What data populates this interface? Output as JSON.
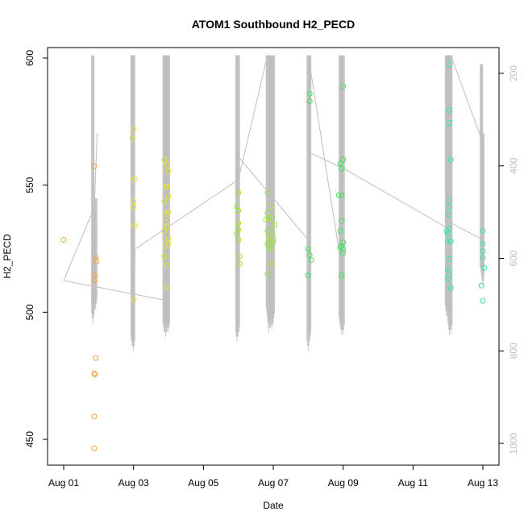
{
  "chart_data": {
    "type": "scatter",
    "title": "ATOM1 Southbound H2_PECD",
    "xlabel": "Date",
    "ylabel": "H2_PECD",
    "x_axis": {
      "type": "date",
      "range": [
        "2016-08-01",
        "2016-08-13"
      ],
      "ticks": [
        {
          "value": "2016-08-01",
          "label": "Aug 01"
        },
        {
          "value": "2016-08-03",
          "label": "Aug 03"
        },
        {
          "value": "2016-08-05",
          "label": "Aug 05"
        },
        {
          "value": "2016-08-07",
          "label": "Aug 07"
        },
        {
          "value": "2016-08-09",
          "label": "Aug 09"
        },
        {
          "value": "2016-08-11",
          "label": "Aug 11"
        },
        {
          "value": "2016-08-13",
          "label": "Aug 13"
        }
      ]
    },
    "y_axis": {
      "range": [
        446,
        601
      ],
      "ticks": [
        {
          "value": 450,
          "label": "450"
        },
        {
          "value": 500,
          "label": "500"
        },
        {
          "value": 550,
          "label": "550"
        },
        {
          "value": 600,
          "label": "600"
        }
      ]
    },
    "y2_axis": {
      "reversed": true,
      "range": [
        1047,
        161
      ],
      "color": "#bebebe",
      "ticks": [
        {
          "value": 200,
          "label": "200"
        },
        {
          "value": 400,
          "label": "400"
        },
        {
          "value": 600,
          "label": "600"
        },
        {
          "value": 800,
          "label": "800"
        },
        {
          "value": 1000,
          "label": "1000"
        }
      ]
    },
    "grid": false,
    "point_series": [
      {
        "color": "#f4a340",
        "points": [
          [
            "2016-08-01T00:00",
            528.5
          ],
          [
            "2016-08-01T21:00",
            557.5
          ],
          [
            "2016-08-01T22:00",
            521.5
          ],
          [
            "2016-08-01T22:30",
            520
          ],
          [
            "2016-08-01T21:30",
            514.5
          ],
          [
            "2016-08-01T21:00",
            512.5
          ],
          [
            "2016-08-01T22:00",
            482
          ],
          [
            "2016-08-01T21:00",
            476
          ],
          [
            "2016-08-01T21:30",
            475.5
          ],
          [
            "2016-08-01T21:00",
            459
          ],
          [
            "2016-08-01T21:00",
            446.5
          ]
        ]
      },
      {
        "color": "#e6e62a",
        "points": [
          [
            "2016-08-03T00:00",
            572
          ],
          [
            "2016-08-02T23:00",
            568.5
          ],
          [
            "2016-08-03T01:00",
            552.5
          ],
          [
            "2016-08-03T00:00",
            543.5
          ],
          [
            "2016-08-03T00:00",
            541.5
          ],
          [
            "2016-08-03T01:00",
            534
          ],
          [
            "2016-08-03T00:00",
            505
          ],
          [
            "2016-08-03T21:00",
            560
          ],
          [
            "2016-08-03T23:00",
            558
          ],
          [
            "2016-08-04T00:00",
            555.5
          ],
          [
            "2016-08-03T22:00",
            549.5
          ],
          [
            "2016-08-03T23:00",
            549.5
          ],
          [
            "2016-08-04T00:00",
            545.5
          ],
          [
            "2016-08-03T21:00",
            543.5
          ],
          [
            "2016-08-04T00:00",
            539.5
          ],
          [
            "2016-08-03T23:00",
            538.5
          ],
          [
            "2016-08-03T22:00",
            535.5
          ],
          [
            "2016-08-03T23:00",
            533.5
          ],
          [
            "2016-08-03T21:00",
            532
          ],
          [
            "2016-08-04T00:00",
            529
          ],
          [
            "2016-08-03T22:00",
            526
          ],
          [
            "2016-08-04T00:00",
            527
          ],
          [
            "2016-08-03T21:00",
            522
          ],
          [
            "2016-08-03T23:00",
            518.5
          ],
          [
            "2016-08-03T23:00",
            510
          ]
        ]
      },
      {
        "color": "#9be62a",
        "points": [
          [
            "2016-08-06T00:00",
            547
          ],
          [
            "2016-08-05T23:00",
            541.5
          ],
          [
            "2016-08-06T00:00",
            540
          ],
          [
            "2016-08-06T00:00",
            535
          ],
          [
            "2016-08-06T00:00",
            532.5
          ],
          [
            "2016-08-05T23:00",
            531
          ],
          [
            "2016-08-06T00:00",
            528.5
          ],
          [
            "2016-08-06T01:00",
            522
          ],
          [
            "2016-08-06T01:00",
            519
          ],
          [
            "2016-08-06T20:00",
            547
          ],
          [
            "2016-08-06T22:00",
            541.5
          ],
          [
            "2016-08-06T20:00",
            539
          ],
          [
            "2016-08-06T21:00",
            537
          ],
          [
            "2016-08-06T23:00",
            537
          ],
          [
            "2016-08-06T19:00",
            536.5
          ],
          [
            "2016-08-07T01:00",
            534.5
          ],
          [
            "2016-08-06T20:00",
            532
          ],
          [
            "2016-08-06T23:00",
            531.5
          ],
          [
            "2016-08-06T21:00",
            530
          ],
          [
            "2016-08-07T00:00",
            529
          ],
          [
            "2016-08-06T22:00",
            528
          ],
          [
            "2016-08-06T20:00",
            527
          ],
          [
            "2016-08-07T00:00",
            527.5
          ],
          [
            "2016-08-06T21:00",
            525.5
          ],
          [
            "2016-08-06T23:00",
            525
          ],
          [
            "2016-08-06T22:00",
            519
          ],
          [
            "2016-08-06T20:00",
            515
          ]
        ]
      },
      {
        "color": "#3ee65c",
        "points": [
          [
            "2016-08-08T01:00",
            586
          ],
          [
            "2016-08-08T01:00",
            583
          ],
          [
            "2016-08-08T00:00",
            525
          ],
          [
            "2016-08-08T01:00",
            522.5
          ],
          [
            "2016-08-08T02:00",
            520.5
          ],
          [
            "2016-08-08T00:00",
            514.5
          ],
          [
            "2016-08-08T22:00",
            558.5
          ],
          [
            "2016-08-08T23:00",
            556.5
          ],
          [
            "2016-08-09T00:00",
            560
          ],
          [
            "2016-08-09T00:00",
            589
          ],
          [
            "2016-08-08T21:00",
            546
          ],
          [
            "2016-08-08T23:00",
            546
          ],
          [
            "2016-08-08T23:00",
            536
          ],
          [
            "2016-08-08T22:00",
            532
          ],
          [
            "2016-08-09T00:00",
            527.5
          ],
          [
            "2016-08-08T23:00",
            526
          ],
          [
            "2016-08-08T22:00",
            525.5
          ],
          [
            "2016-08-09T00:00",
            525
          ],
          [
            "2016-08-09T00:00",
            523.5
          ],
          [
            "2016-08-08T23:00",
            514.5
          ]
        ]
      },
      {
        "color": "#36e6b4",
        "points": [
          [
            "2016-08-12T01:00",
            597.5
          ],
          [
            "2016-08-12T01:00",
            579.5
          ],
          [
            "2016-08-12T01:00",
            574.5
          ],
          [
            "2016-08-12T02:00",
            560
          ],
          [
            "2016-08-12T01:00",
            544
          ],
          [
            "2016-08-12T01:00",
            541.5
          ],
          [
            "2016-08-12T00:00",
            538.5
          ],
          [
            "2016-08-12T01:00",
            533
          ],
          [
            "2016-08-11T23:00",
            532
          ],
          [
            "2016-08-12T00:00",
            531
          ],
          [
            "2016-08-12T00:00",
            528
          ],
          [
            "2016-08-12T02:00",
            528
          ],
          [
            "2016-08-12T01:00",
            521
          ],
          [
            "2016-08-12T00:00",
            517
          ],
          [
            "2016-08-12T01:00",
            514.5
          ],
          [
            "2016-08-12T00:00",
            513
          ],
          [
            "2016-08-12T02:00",
            509.5
          ],
          [
            "2016-08-13T00:00",
            532
          ],
          [
            "2016-08-13T00:00",
            527
          ],
          [
            "2016-08-13T00:00",
            524
          ],
          [
            "2016-08-13T00:00",
            521.5
          ],
          [
            "2016-08-13T01:00",
            517.5
          ],
          [
            "2016-08-12T23:00",
            510.5
          ],
          [
            "2016-08-13T00:00",
            504.5
          ]
        ]
      }
    ],
    "line_series": [
      {
        "color": "#bebebe",
        "axis": "y2",
        "points": [
          [
            "2016-08-01T00:00",
            648
          ],
          [
            "2016-08-01T21:00",
            490
          ],
          [
            "2016-08-01T23:00",
            330
          ]
        ]
      },
      {
        "color": "#bebebe",
        "axis": "y2",
        "points": [
          [
            "2016-08-01T00:00",
            648
          ],
          [
            "2016-08-03T21:00",
            690
          ]
        ]
      },
      {
        "color": "#bebebe",
        "axis": "y2",
        "points": [
          [
            "2016-08-03T00:00",
            790
          ],
          [
            "2016-08-03T01:00",
            580
          ],
          [
            "2016-08-06T00:00",
            430
          ],
          [
            "2016-08-06T20:00",
            161
          ]
        ]
      },
      {
        "color": "#bebebe",
        "axis": "y2",
        "points": [
          [
            "2016-08-06T00:00",
            380
          ],
          [
            "2016-08-08T00:00",
            560
          ]
        ]
      },
      {
        "color": "#bebebe",
        "axis": "y2",
        "points": [
          [
            "2016-08-08T00:00",
            370
          ],
          [
            "2016-08-09T00:00",
            405
          ],
          [
            "2016-08-12T00:00",
            535
          ]
        ]
      },
      {
        "color": "#bebebe",
        "axis": "y2",
        "points": [
          [
            "2016-08-08T00:00",
            161
          ],
          [
            "2016-08-09T00:00",
            640
          ]
        ]
      },
      {
        "color": "#bebebe",
        "axis": "y2",
        "points": [
          [
            "2016-08-12T00:00",
            520
          ],
          [
            "2016-08-13T00:00",
            560
          ]
        ]
      },
      {
        "color": "#bebebe",
        "axis": "y2",
        "points": [
          [
            "2016-08-12T02:00",
            161
          ],
          [
            "2016-08-13T00:00",
            350
          ]
        ]
      }
    ],
    "profile_spikes": {
      "color": "#bebebe",
      "axis": "y2",
      "columns": [
        {
          "x": "2016-08-01T20:00",
          "top": 161,
          "bottom": 740
        },
        {
          "x": "2016-08-01T21:00",
          "top": 480,
          "bottom": 720
        },
        {
          "x": "2016-08-01T22:00",
          "top": 470,
          "bottom": 710
        },
        {
          "x": "2016-08-02T23:00",
          "top": 161,
          "bottom": 790
        },
        {
          "x": "2016-08-03T00:00",
          "top": 161,
          "bottom": 800
        },
        {
          "x": "2016-08-03T21:00",
          "top": 161,
          "bottom": 760
        },
        {
          "x": "2016-08-03T22:00",
          "top": 161,
          "bottom": 770
        },
        {
          "x": "2016-08-03T23:00",
          "top": 161,
          "bottom": 760
        },
        {
          "x": "2016-08-04T00:00",
          "top": 161,
          "bottom": 760
        },
        {
          "x": "2016-08-05T23:00",
          "top": 161,
          "bottom": 780
        },
        {
          "x": "2016-08-06T00:00",
          "top": 161,
          "bottom": 770
        },
        {
          "x": "2016-08-06T20:00",
          "top": 161,
          "bottom": 730
        },
        {
          "x": "2016-08-06T21:00",
          "top": 161,
          "bottom": 760
        },
        {
          "x": "2016-08-06T22:00",
          "top": 161,
          "bottom": 750
        },
        {
          "x": "2016-08-06T23:00",
          "top": 161,
          "bottom": 755
        },
        {
          "x": "2016-08-07T00:00",
          "top": 161,
          "bottom": 740
        },
        {
          "x": "2016-08-08T00:00",
          "top": 161,
          "bottom": 800
        },
        {
          "x": "2016-08-08T01:00",
          "top": 161,
          "bottom": 780
        },
        {
          "x": "2016-08-08T22:00",
          "top": 161,
          "bottom": 750
        },
        {
          "x": "2016-08-08T23:00",
          "top": 161,
          "bottom": 765
        },
        {
          "x": "2016-08-09T00:00",
          "top": 161,
          "bottom": 765
        },
        {
          "x": "2016-08-11T23:00",
          "top": 161,
          "bottom": 725
        },
        {
          "x": "2016-08-12T00:00",
          "top": 161,
          "bottom": 735
        },
        {
          "x": "2016-08-12T01:00",
          "top": 161,
          "bottom": 765
        },
        {
          "x": "2016-08-12T02:00",
          "top": 161,
          "bottom": 765
        },
        {
          "x": "2016-08-12T23:00",
          "top": 180,
          "bottom": 640
        },
        {
          "x": "2016-08-13T00:00",
          "top": 330,
          "bottom": 660
        }
      ]
    }
  }
}
